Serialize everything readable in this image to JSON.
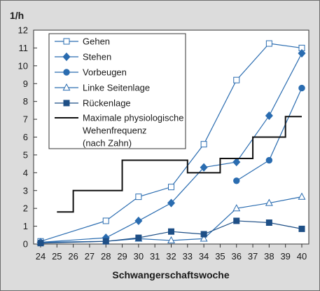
{
  "chart_data": {
    "type": "line",
    "title": "",
    "ylabel": "1/h",
    "xlabel": "Schwangerschaftswoche",
    "xlim": [
      24,
      40
    ],
    "ylim": [
      0,
      12
    ],
    "x_ticks": [
      24,
      25,
      26,
      27,
      28,
      29,
      30,
      31,
      32,
      33,
      34,
      35,
      36,
      37,
      38,
      39,
      40
    ],
    "y_ticks": [
      0,
      1,
      2,
      3,
      4,
      5,
      6,
      7,
      8,
      9,
      10,
      11,
      12
    ],
    "grid": false,
    "legend_position": "top-left",
    "series": [
      {
        "name": "Gehen",
        "marker": "square-open",
        "color": "#2a6cb0",
        "x": [
          24,
          28,
          30,
          32,
          34,
          36,
          38,
          40
        ],
        "y": [
          0.15,
          1.3,
          2.65,
          3.2,
          5.6,
          9.2,
          11.25,
          11.0
        ]
      },
      {
        "name": "Stehen",
        "marker": "diamond-filled",
        "color": "#2a6cb0",
        "x": [
          24,
          28,
          30,
          32,
          34,
          36,
          38,
          40
        ],
        "y": [
          0.1,
          0.35,
          1.3,
          2.3,
          4.3,
          4.6,
          7.2,
          10.7
        ]
      },
      {
        "name": "Vorbeugen",
        "marker": "circle-filled",
        "color": "#2a6cb0",
        "x": [
          36,
          38,
          40
        ],
        "y": [
          3.55,
          4.7,
          8.75
        ]
      },
      {
        "name": "Linke Seitenlage",
        "marker": "triangle-open",
        "color": "#2a6cb0",
        "x": [
          24,
          28,
          30,
          32,
          34,
          36,
          38,
          40
        ],
        "y": [
          0.1,
          0.15,
          0.3,
          0.2,
          0.3,
          2.0,
          2.3,
          2.65
        ]
      },
      {
        "name": "Rückenlage",
        "marker": "square-filled",
        "color": "#1e4f86",
        "x": [
          24,
          28,
          30,
          32,
          34,
          36,
          38,
          40
        ],
        "y": [
          0.05,
          0.15,
          0.35,
          0.7,
          0.55,
          1.3,
          1.2,
          0.85
        ]
      },
      {
        "name": "Maximale physiologische Wehenfrequenz (nach Zahn)",
        "marker": "none",
        "color": "#111111",
        "step": true,
        "steps": [
          {
            "x0": 25,
            "x1": 26,
            "y": 1.8
          },
          {
            "x0": 26,
            "x1": 29,
            "y": 3.0
          },
          {
            "x0": 29,
            "x1": 33,
            "y": 4.7
          },
          {
            "x0": 33,
            "x1": 35,
            "y": 4.0
          },
          {
            "x0": 35,
            "x1": 37,
            "y": 4.8
          },
          {
            "x0": 37,
            "x1": 39,
            "y": 6.0
          },
          {
            "x0": 39,
            "x1": 40,
            "y": 7.15
          }
        ]
      }
    ],
    "legend": [
      {
        "label": "Gehen",
        "marker": "square-open",
        "color": "#2a6cb0"
      },
      {
        "label": "Stehen",
        "marker": "diamond-filled",
        "color": "#2a6cb0"
      },
      {
        "label": "Vorbeugen",
        "marker": "circle-filled",
        "color": "#2a6cb0"
      },
      {
        "label": "Linke Seitenlage",
        "marker": "triangle-open",
        "color": "#2a6cb0"
      },
      {
        "label": "Rückenlage",
        "marker": "square-filled",
        "color": "#1e4f86"
      },
      {
        "label_lines": [
          "Maximale physiologische",
          "Wehenfrequenz",
          "(nach Zahn)"
        ],
        "marker": "line",
        "color": "#111111"
      }
    ]
  }
}
